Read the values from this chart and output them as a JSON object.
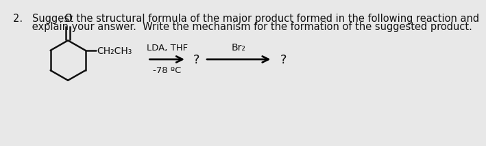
{
  "background_color": "#e8e8e8",
  "title_line1": "2.   Suggest the structural formula of the major product formed in the following reaction and",
  "title_line2": "      explain your answer.  Write the mechanism for the formation of the suggested product.",
  "title_fontsize": 10.5,
  "title_fontweight": "normal",
  "ketone_label": "CH₂CH₃",
  "reagent1_line1": "LDA, THF",
  "reagent1_line2": "-78 ºC",
  "q1": "?",
  "br2_label": "Br₂",
  "q2": "?",
  "text_color": "#111111",
  "ring_color": "#111111",
  "ring_lw": 1.8
}
